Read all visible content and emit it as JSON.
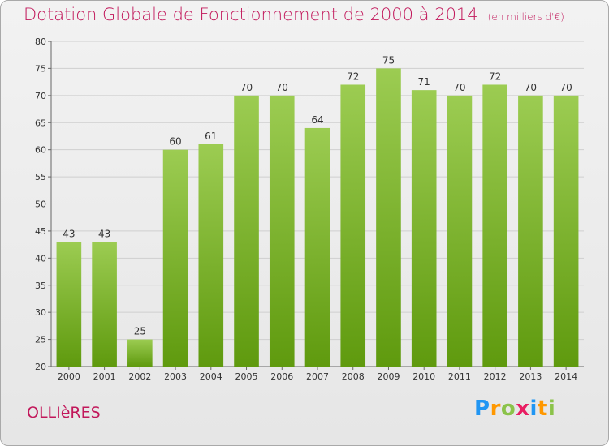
{
  "title": "Dotation Globale de Fonctionnement de 2000 à 2014",
  "subtitle": "(en milliers d'€)",
  "commune": "OLLIèRES",
  "logo": {
    "letters": [
      "P",
      "r",
      "o",
      "x",
      "i",
      "t",
      "i"
    ],
    "colors": [
      "#2196f3",
      "#ff9800",
      "#8bc34a",
      "#e91e63",
      "#2196f3",
      "#ff9800",
      "#8bc34a"
    ]
  },
  "colors": {
    "bar_top": "#9ccc52",
    "bar_bottom": "#5f9a0e",
    "title": "#c2185b"
  },
  "chart_data": {
    "type": "bar",
    "title": "Dotation Globale de Fonctionnement de 2000 à 2014",
    "subtitle": "(en milliers d'€)",
    "categories": [
      "2000",
      "2001",
      "2002",
      "2003",
      "2004",
      "2005",
      "2006",
      "2007",
      "2008",
      "2009",
      "2010",
      "2011",
      "2012",
      "2013",
      "2014"
    ],
    "values": [
      43,
      43,
      25,
      60,
      61,
      70,
      70,
      64,
      72,
      75,
      71,
      70,
      72,
      70,
      70
    ],
    "ylim": [
      20,
      80
    ],
    "yticks": [
      20,
      25,
      30,
      35,
      40,
      45,
      50,
      55,
      60,
      65,
      70,
      75,
      80
    ],
    "grid": true,
    "xlabel": "",
    "ylabel": ""
  }
}
